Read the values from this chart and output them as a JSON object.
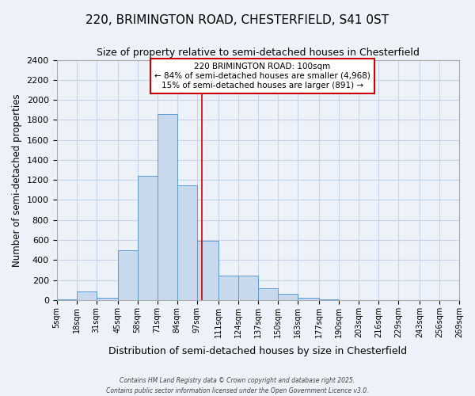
{
  "title": "220, BRIMINGTON ROAD, CHESTERFIELD, S41 0ST",
  "subtitle": "Size of property relative to semi-detached houses in Chesterfield",
  "xlabel": "Distribution of semi-detached houses by size in Chesterfield",
  "ylabel": "Number of semi-detached properties",
  "bar_color": "#c8d9ed",
  "bar_edge_color": "#5b9bd5",
  "background_color": "#edf2f9",
  "grid_color": "#c8d4e8",
  "vline_x": 100,
  "vline_color": "#cc0000",
  "annotation_text": "220 BRIMINGTON ROAD: 100sqm\n← 84% of semi-detached houses are smaller (4,968)\n15% of semi-detached houses are larger (891) →",
  "annotation_box_color": "#ffffff",
  "annotation_box_edge": "#cc0000",
  "bin_edges": [
    5,
    18,
    31,
    45,
    58,
    71,
    84,
    97,
    111,
    124,
    137,
    150,
    163,
    177,
    190,
    203,
    216,
    229,
    243,
    256,
    269
  ],
  "bin_labels": [
    "5sqm",
    "18sqm",
    "31sqm",
    "45sqm",
    "58sqm",
    "71sqm",
    "84sqm",
    "97sqm",
    "111sqm",
    "124sqm",
    "137sqm",
    "150sqm",
    "163sqm",
    "177sqm",
    "190sqm",
    "203sqm",
    "216sqm",
    "229sqm",
    "243sqm",
    "256sqm",
    "269sqm"
  ],
  "bar_heights": [
    5,
    90,
    20,
    500,
    1240,
    1860,
    1150,
    590,
    245,
    245,
    115,
    65,
    25,
    5,
    2,
    0,
    0,
    0,
    0,
    0
  ],
  "ylim": [
    0,
    2400
  ],
  "yticks": [
    0,
    200,
    400,
    600,
    800,
    1000,
    1200,
    1400,
    1600,
    1800,
    2000,
    2200,
    2400
  ],
  "footer": "Contains HM Land Registry data © Crown copyright and database right 2025.\nContains public sector information licensed under the Open Government Licence v3.0."
}
